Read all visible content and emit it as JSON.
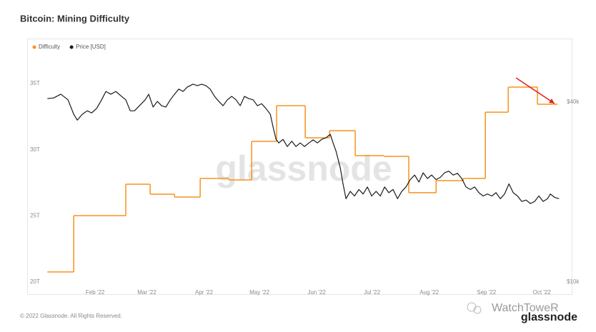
{
  "chart_data": {
    "type": "line",
    "title": "Bitcoin: Mining Difficulty",
    "watermark": "glassnode",
    "footer": "© 2022 Glassnode. All Rights Reserved.",
    "logo": "glassnode",
    "source_watermark": "WatchToweR",
    "xlim": [
      6,
      283.6
    ],
    "xticks": [
      {
        "value": 32,
        "label": "Feb '22"
      },
      {
        "value": 60,
        "label": "Mar '22"
      },
      {
        "value": 91,
        "label": "Apr '22"
      },
      {
        "value": 121,
        "label": "May '22"
      },
      {
        "value": 152,
        "label": "Jun '22"
      },
      {
        "value": 182,
        "label": "Jul '22"
      },
      {
        "value": 213,
        "label": "Aug '22"
      },
      {
        "value": 244,
        "label": "Sep '22"
      },
      {
        "value": 274,
        "label": "Oct '22"
      }
    ],
    "ylim": [
      19.73,
      36.19
    ],
    "yticks": [
      {
        "value": 20,
        "label": "20T"
      },
      {
        "value": 25,
        "label": "25T"
      },
      {
        "value": 30,
        "label": "30T"
      },
      {
        "value": 35,
        "label": "35T"
      }
    ],
    "y2lim": [
      9727,
      52080
    ],
    "y2log": true,
    "y2ticks": [
      {
        "value": 10000,
        "label": "$10k"
      },
      {
        "value": 40000,
        "label": "$40k"
      }
    ],
    "grid": false,
    "legend": "top-left",
    "series": [
      {
        "name": "Difficulty",
        "color": "#f7931a",
        "axis": "y",
        "step": "after",
        "x": [
          6.1,
          20.4,
          48.6,
          61.8,
          75.0,
          88.9,
          104.4,
          116.8,
          130.3,
          145.8,
          159.0,
          172.9,
          188.4,
          201.9,
          216.7,
          231.4,
          243.4,
          255.8,
          271.6,
          282.5
        ],
        "values": [
          20.76,
          25.02,
          27.39,
          26.64,
          26.42,
          27.83,
          27.72,
          30.63,
          33.33,
          30.9,
          31.44,
          29.55,
          29.5,
          26.75,
          27.66,
          27.83,
          32.84,
          34.73,
          33.44,
          33.44
        ]
      },
      {
        "name": "Price [USD]",
        "color": "#1a1a1a",
        "axis": "y2",
        "x": [
          6.1,
          9.5,
          13.4,
          17.3,
          20.4,
          22.3,
          25.0,
          27.7,
          30.1,
          32.8,
          35.5,
          37.8,
          40.5,
          43.2,
          46.3,
          48.6,
          51.0,
          53.3,
          56.0,
          59.1,
          61.0,
          63.4,
          65.7,
          68.0,
          70.3,
          72.7,
          75.0,
          77.3,
          79.6,
          81.9,
          85.0,
          87.4,
          89.7,
          92.0,
          94.3,
          96.7,
          99.0,
          101.3,
          103.6,
          106.0,
          108.3,
          110.6,
          112.9,
          115.2,
          117.6,
          119.9,
          122.2,
          124.5,
          126.9,
          128.4,
          130.0,
          131.5,
          133.8,
          136.1,
          138.5,
          140.8,
          143.1,
          145.4,
          147.8,
          150.1,
          152.4,
          154.7,
          157.1,
          159.4,
          160.9,
          162.5,
          164.8,
          166.3,
          167.9,
          170.2,
          172.5,
          174.9,
          177.2,
          179.5,
          181.8,
          184.2,
          186.5,
          188.8,
          191.1,
          193.4,
          195.8,
          198.1,
          200.4,
          202.7,
          205.1,
          207.4,
          209.7,
          212.0,
          214.3,
          216.7,
          219.0,
          221.3,
          223.6,
          226.0,
          228.3,
          230.6,
          232.9,
          235.3,
          237.6,
          239.9,
          242.2,
          244.5,
          246.9,
          249.2,
          251.5,
          253.8,
          256.2,
          258.5,
          260.8,
          263.1,
          265.5,
          267.8,
          270.1,
          272.4,
          274.7,
          277.1,
          278.6,
          280.9,
          283.3
        ],
        "values": [
          41100,
          41300,
          42500,
          40700,
          36400,
          34800,
          36400,
          37400,
          36800,
          38100,
          40700,
          43400,
          42500,
          43400,
          41800,
          40700,
          37400,
          37400,
          38900,
          40700,
          42500,
          38500,
          40200,
          38900,
          38500,
          40700,
          42500,
          44200,
          43400,
          44900,
          45900,
          45400,
          45900,
          45400,
          44200,
          41800,
          40200,
          38900,
          40700,
          41800,
          40700,
          38900,
          41800,
          41100,
          40700,
          38900,
          39500,
          38100,
          36400,
          33000,
          30000,
          29200,
          30000,
          28400,
          29600,
          28400,
          29200,
          28400,
          29200,
          29900,
          29200,
          30000,
          30400,
          31200,
          29200,
          27400,
          24100,
          21300,
          19000,
          20100,
          19400,
          20400,
          19700,
          20800,
          19400,
          20100,
          19400,
          20800,
          19900,
          20400,
          19000,
          20100,
          20800,
          22000,
          22800,
          21600,
          23200,
          22200,
          22800,
          22000,
          22400,
          23200,
          23500,
          22800,
          23100,
          22200,
          20800,
          20400,
          20800,
          19900,
          19400,
          19700,
          19400,
          19900,
          19000,
          19700,
          21300,
          19900,
          19400,
          18600,
          18800,
          18300,
          18600,
          19400,
          18600,
          19000,
          19700,
          19200,
          19000
        ]
      }
    ]
  }
}
